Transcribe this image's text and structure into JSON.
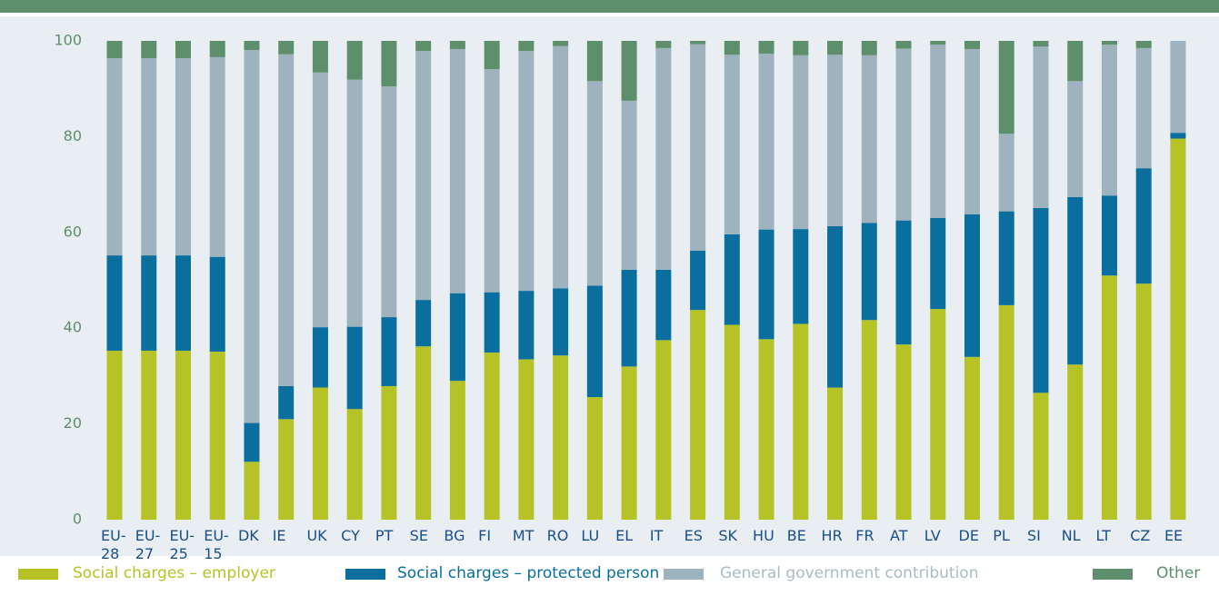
{
  "chart_data": {
    "type": "stacked-bar",
    "categories": [
      "EU-28",
      "EU-27",
      "EU-25",
      "EU-15",
      "DK",
      "IE",
      "UK",
      "CY",
      "PT",
      "SE",
      "BG",
      "FI",
      "MT",
      "RO",
      "LU",
      "EL",
      "IT",
      "ES",
      "SK",
      "HU",
      "BE",
      "HR",
      "FR",
      "AT",
      "LV",
      "DE",
      "PL",
      "SI",
      "NL",
      "LT",
      "CZ",
      "EE"
    ],
    "series": [
      {
        "name": "Social charges – employer",
        "color": "#b5c326",
        "values": [
          35.3,
          35.3,
          35.3,
          35.1,
          12.1,
          21.0,
          27.6,
          23.1,
          27.9,
          36.2,
          29.0,
          34.9,
          33.5,
          34.3,
          25.6,
          32.0,
          37.5,
          43.8,
          40.7,
          37.7,
          40.9,
          27.6,
          41.7,
          36.6,
          44.0,
          34.0,
          44.8,
          26.5,
          32.4,
          51.0,
          49.3,
          79.6
        ]
      },
      {
        "name": "Social charges – protected person",
        "color": "#0a6f9e",
        "values": [
          19.9,
          19.9,
          19.9,
          19.8,
          8.1,
          6.9,
          12.6,
          17.2,
          14.4,
          9.7,
          18.3,
          12.6,
          14.3,
          14.0,
          23.3,
          20.2,
          14.7,
          12.4,
          18.9,
          22.9,
          19.8,
          33.7,
          20.3,
          25.9,
          19.0,
          29.8,
          19.6,
          38.6,
          35.0,
          16.7,
          24.1,
          1.2
        ]
      },
      {
        "name": "General government contribution",
        "color": "#9fb3bf",
        "values": [
          41.2,
          41.2,
          41.2,
          41.7,
          77.9,
          69.3,
          53.2,
          51.6,
          48.2,
          52.0,
          51.0,
          46.6,
          50.1,
          50.6,
          42.7,
          35.3,
          46.3,
          43.1,
          37.5,
          36.7,
          36.3,
          35.8,
          35.0,
          35.9,
          36.2,
          34.5,
          16.2,
          33.7,
          24.2,
          31.5,
          25.1,
          19.2
        ]
      },
      {
        "name": "Other",
        "color": "#5e8f6c",
        "values": [
          3.6,
          3.6,
          3.6,
          3.4,
          1.9,
          2.8,
          6.6,
          8.1,
          9.5,
          2.1,
          1.7,
          5.9,
          2.1,
          1.1,
          8.4,
          12.5,
          1.5,
          0.7,
          2.9,
          2.7,
          3.0,
          2.9,
          3.0,
          1.6,
          0.8,
          1.7,
          19.4,
          1.2,
          8.4,
          0.8,
          1.5,
          0
        ]
      }
    ],
    "ylim": [
      0,
      100
    ],
    "yticks": [
      0,
      20,
      40,
      60,
      80,
      100
    ]
  }
}
